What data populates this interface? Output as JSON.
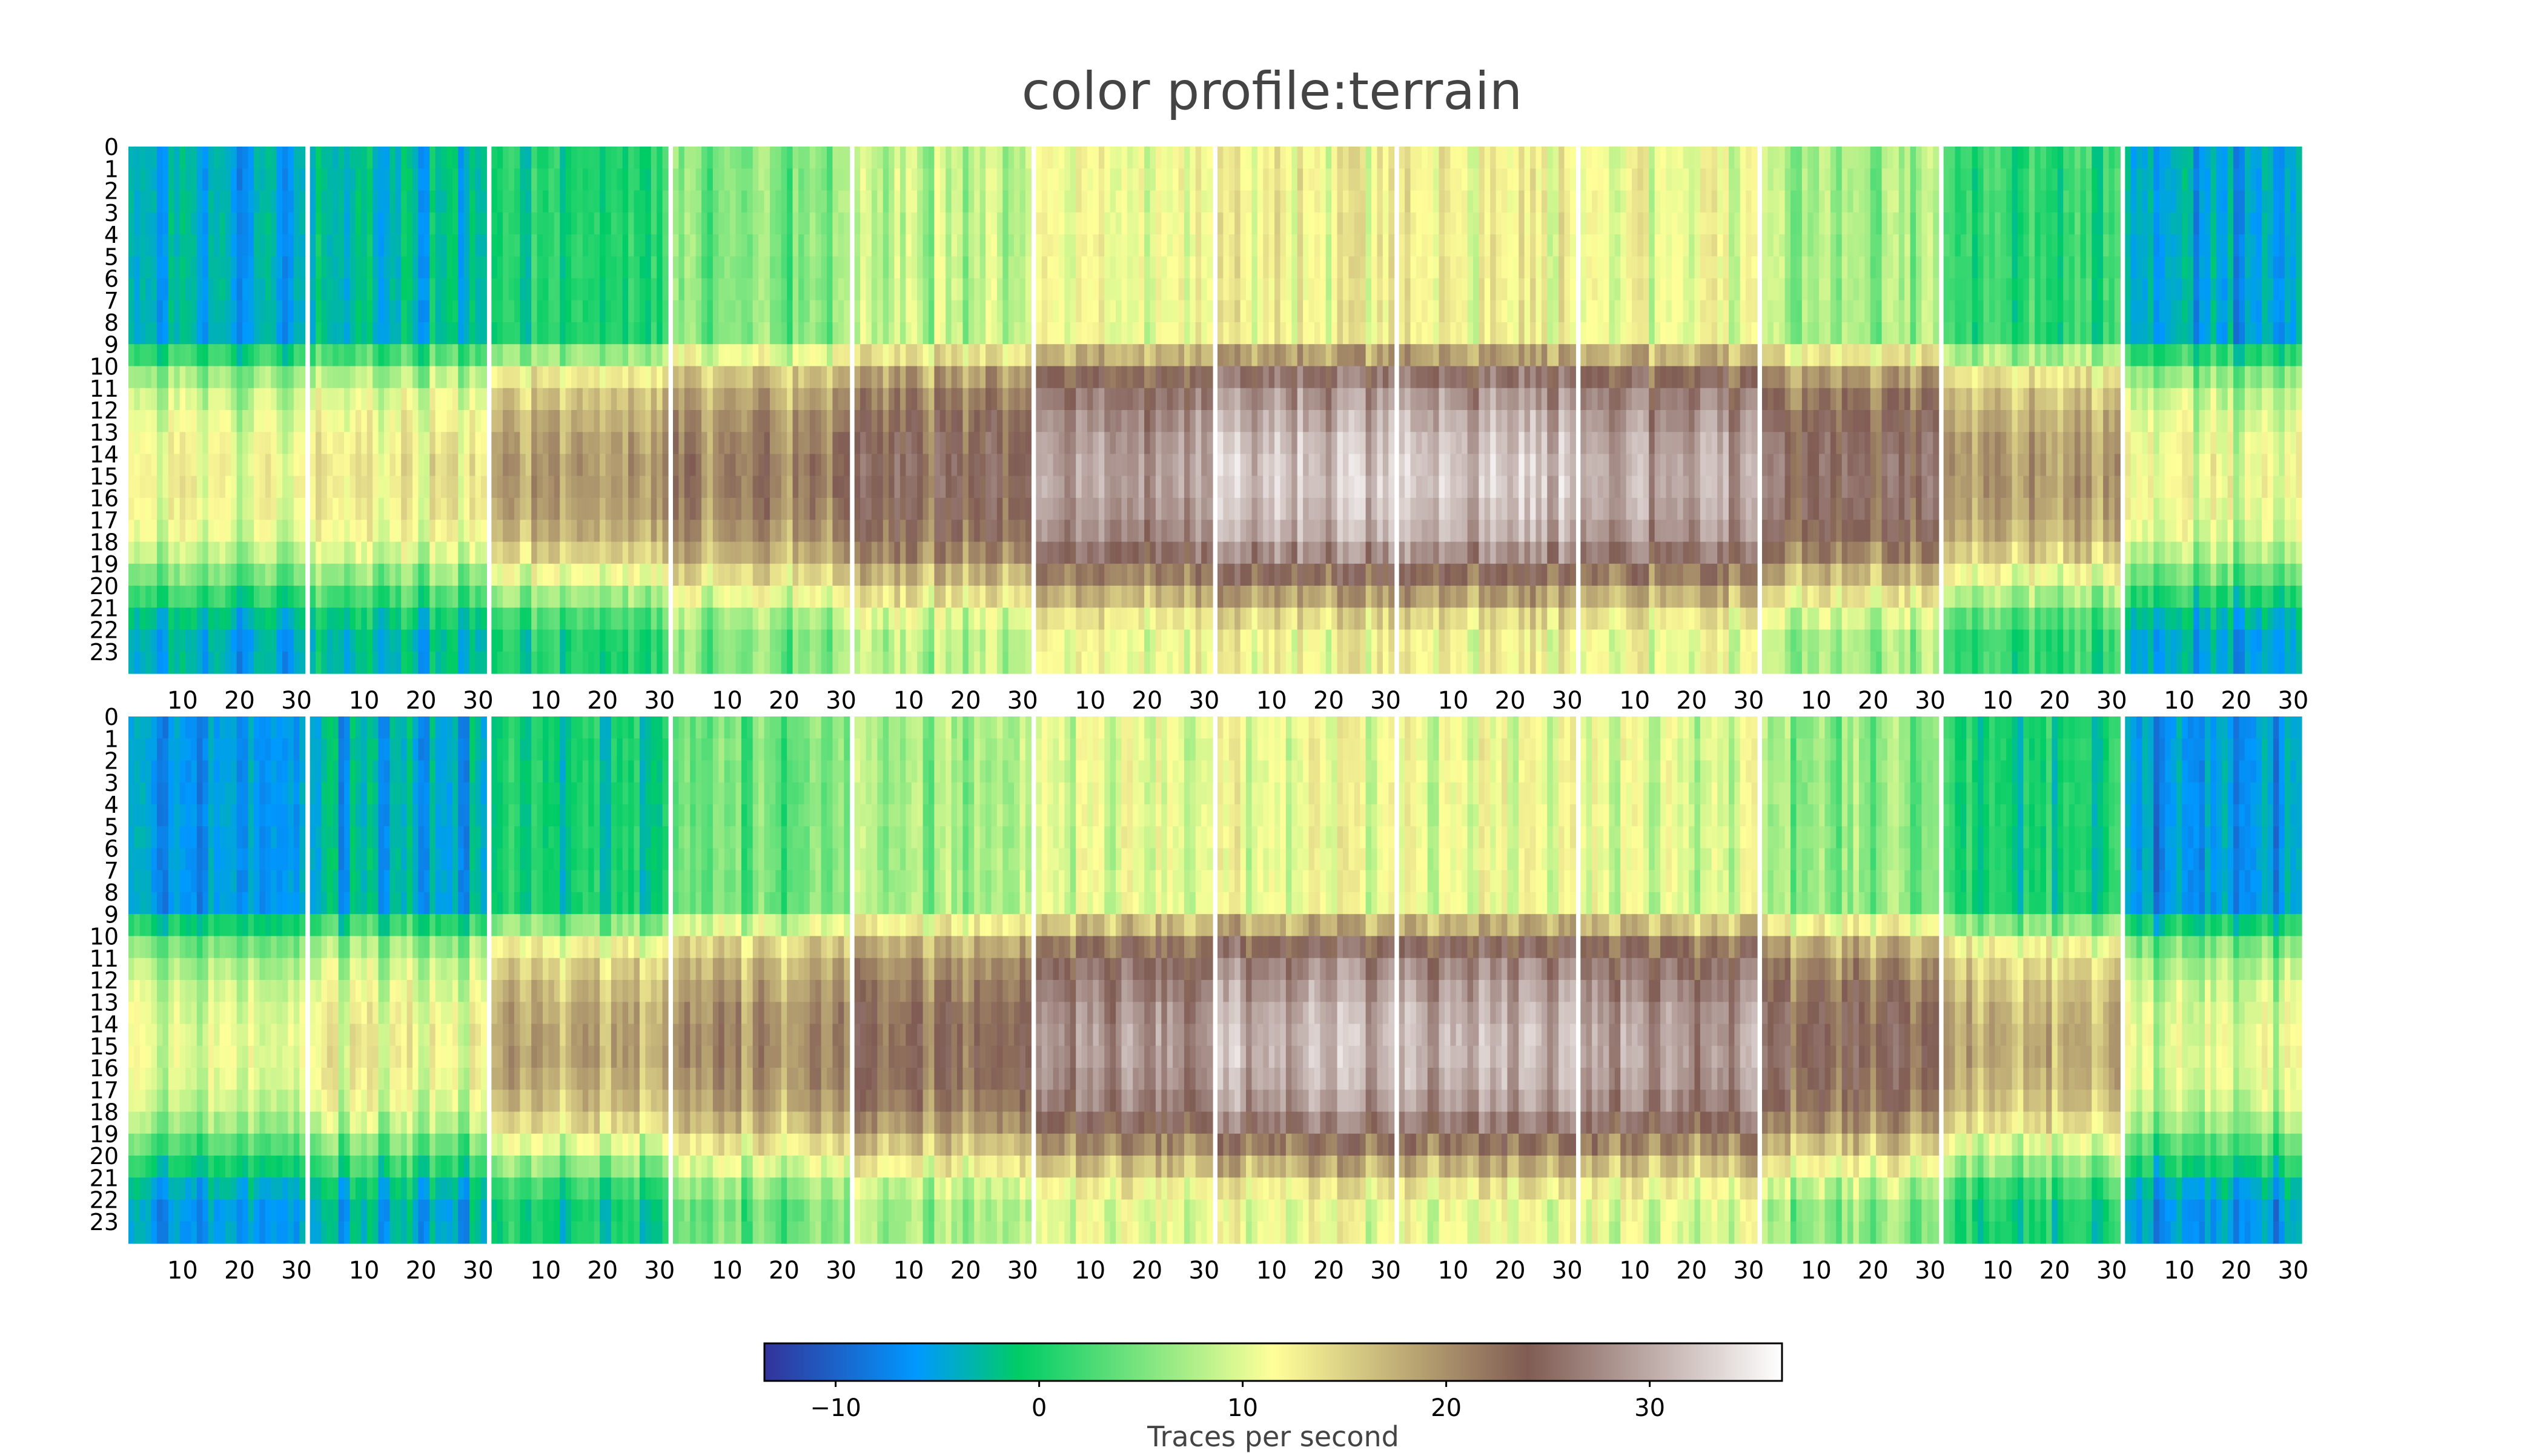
{
  "title": "color profile:terrain",
  "colorbar": {
    "label": "Traces per second",
    "ticks": [
      "−10",
      "0",
      "10",
      "20",
      "30"
    ],
    "tick_values": [
      -10,
      0,
      10,
      20,
      30
    ],
    "range": [
      -13.5,
      36.5
    ],
    "colormap": "terrain",
    "colormap_stops": [
      {
        "v": 0.0,
        "c": "#333399"
      },
      {
        "v": 0.15,
        "c": "#0099ff"
      },
      {
        "v": 0.25,
        "c": "#00cc66"
      },
      {
        "v": 0.5,
        "c": "#ffff99"
      },
      {
        "v": 0.75,
        "c": "#805c54"
      },
      {
        "v": 1.0,
        "c": "#ffffff"
      }
    ]
  },
  "chart_data": {
    "type": "heatmap",
    "panels": 2,
    "months_per_panel": 12,
    "days_per_month": 31,
    "hours": 24,
    "y_tick_labels": [
      "0",
      "1",
      "2",
      "3",
      "4",
      "5",
      "6",
      "7",
      "8",
      "9",
      "10",
      "11",
      "12",
      "13",
      "14",
      "15",
      "16",
      "17",
      "18",
      "19",
      "20",
      "21",
      "22",
      "23"
    ],
    "x_tick_labels": [
      "10",
      "20",
      "30"
    ],
    "x_tick_days": [
      10,
      20,
      30
    ],
    "value_unit": "Traces per second",
    "profile": {
      "night_hours": [
        0,
        8
      ],
      "morning_hours": [
        9,
        10
      ],
      "midday_hours": [
        11,
        17
      ],
      "evening_hours": [
        18,
        23
      ],
      "night_level_by_month": [
        -4,
        -2,
        1,
        6,
        9,
        12,
        13,
        13,
        12,
        8,
        2,
        -4
      ],
      "midday_level_by_month": [
        12,
        14,
        20,
        22,
        25,
        30,
        33,
        33,
        31,
        26,
        20,
        12
      ],
      "panel_offsets": [
        0,
        -1
      ]
    }
  }
}
